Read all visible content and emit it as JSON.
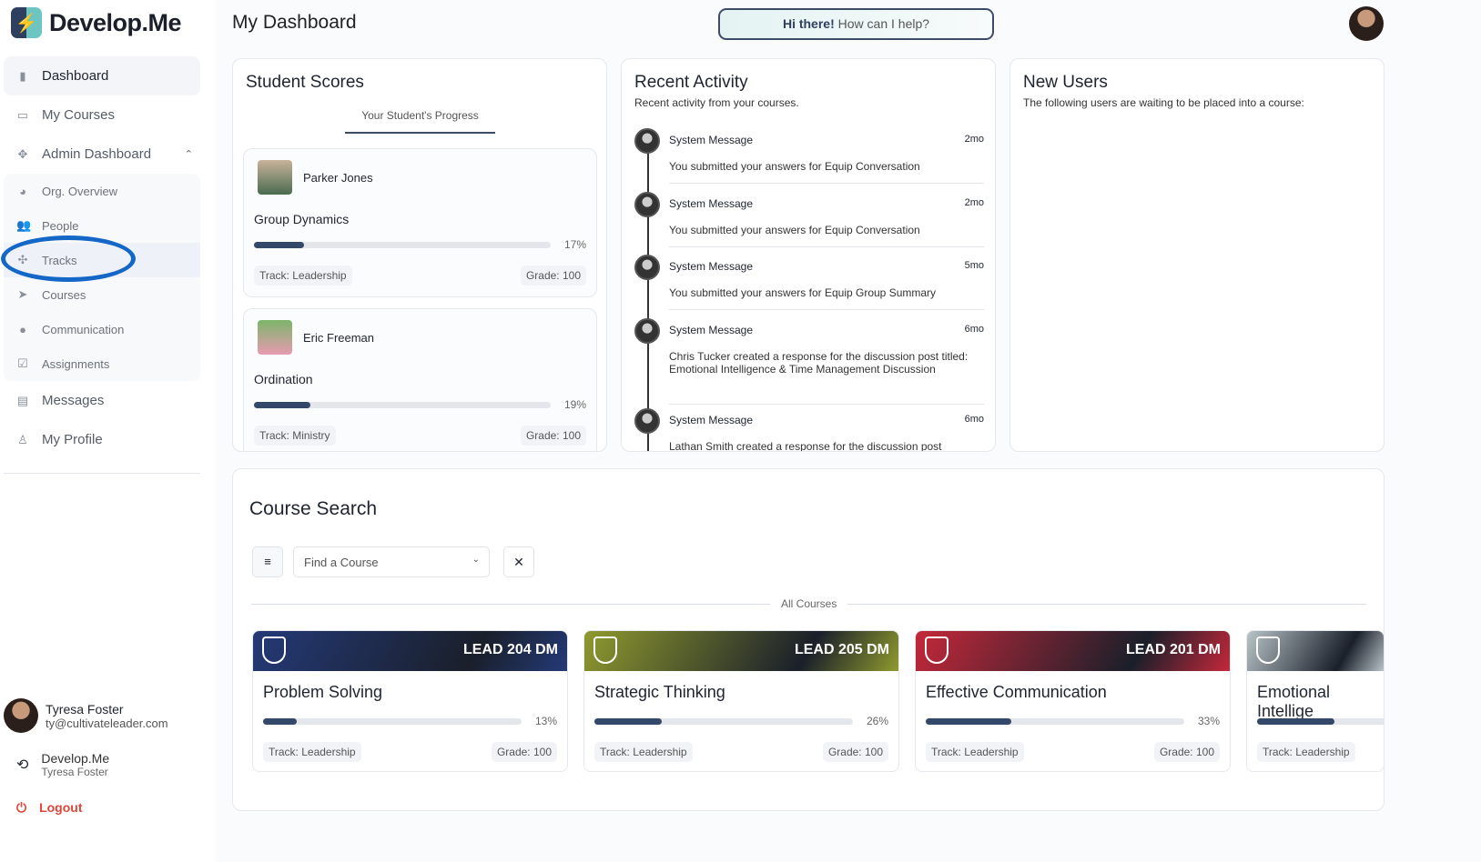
{
  "app": {
    "name": "Develop.Me",
    "page_title": "My Dashboard"
  },
  "sidebar": {
    "items": [
      {
        "label": "Dashboard",
        "icon": "bar-chart-icon"
      },
      {
        "label": "My Courses",
        "icon": "laptop-icon"
      },
      {
        "label": "Admin Dashboard",
        "icon": "admin-icon"
      },
      {
        "label": "Org. Overview",
        "icon": "pie-chart-icon"
      },
      {
        "label": "People",
        "icon": "people-icon"
      },
      {
        "label": "Tracks",
        "icon": "tracks-icon"
      },
      {
        "label": "Courses",
        "icon": "send-icon"
      },
      {
        "label": "Communication",
        "icon": "speaker-icon"
      },
      {
        "label": "Assignments",
        "icon": "clipboard-check-icon"
      },
      {
        "label": "Messages",
        "icon": "message-icon"
      },
      {
        "label": "My Profile",
        "icon": "person-icon"
      }
    ],
    "user": {
      "name": "Tyresa Foster",
      "email": "ty@cultivateleader.com"
    },
    "org": {
      "name": "Develop.Me",
      "user": "Tyresa Foster"
    },
    "logout": "Logout"
  },
  "help": {
    "greeting": "Hi there!",
    "text": " How can I help?"
  },
  "student_scores": {
    "title": "Student Scores",
    "tab": "Your Student's Progress",
    "students": [
      {
        "name": "Parker Jones",
        "course": "Group Dynamics",
        "progress": 17,
        "progress_label": "17%",
        "track": "Track: Leadership",
        "grade": "Grade: 100"
      },
      {
        "name": "Eric Freeman",
        "course": "Ordination",
        "progress": 19,
        "progress_label": "19%",
        "track": "Track: Ministry",
        "grade": "Grade: 100"
      }
    ]
  },
  "recent_activity": {
    "title": "Recent Activity",
    "subtitle": "Recent activity from your courses.",
    "items": [
      {
        "title": "System Message",
        "time": "2mo",
        "message": "You submitted your answers for Equip Conversation"
      },
      {
        "title": "System Message",
        "time": "2mo",
        "message": "You submitted your answers for Equip Conversation"
      },
      {
        "title": "System Message",
        "time": "5mo",
        "message": "You submitted your answers for Equip Group Summary"
      },
      {
        "title": "System Message",
        "time": "6mo",
        "message": "Chris Tucker created a response for the discussion post titled: Emotional Intelligence & Time Management Discussion"
      },
      {
        "title": "System Message",
        "time": "6mo",
        "message": "Lathan Smith created a response for the discussion post"
      }
    ]
  },
  "new_users": {
    "title": "New Users",
    "subtitle": "The following users are waiting to be placed into a course:"
  },
  "course_search": {
    "title": "Course Search",
    "placeholder": "Find a Course",
    "divider": "All Courses",
    "courses": [
      {
        "code": "LEAD 204 DM",
        "name": "Problem Solving",
        "progress": 13,
        "progress_label": "13%",
        "track": "Track: Leadership",
        "grade": "Grade: 100",
        "color": "#243a78"
      },
      {
        "code": "LEAD 205 DM",
        "name": "Strategic Thinking",
        "progress": 26,
        "progress_label": "26%",
        "track": "Track: Leadership",
        "grade": "Grade: 100",
        "color": "#8f9a2e"
      },
      {
        "code": "LEAD 201 DM",
        "name": "Effective Communication",
        "progress": 33,
        "progress_label": "33%",
        "track": "Track: Leadership",
        "grade": "Grade: 100",
        "color": "#c4283a"
      },
      {
        "code": "",
        "name": "Emotional Intellige",
        "progress": 30,
        "progress_label": "",
        "track": "Track: Leadership",
        "grade": "",
        "color": "#b8c4c8"
      }
    ]
  }
}
